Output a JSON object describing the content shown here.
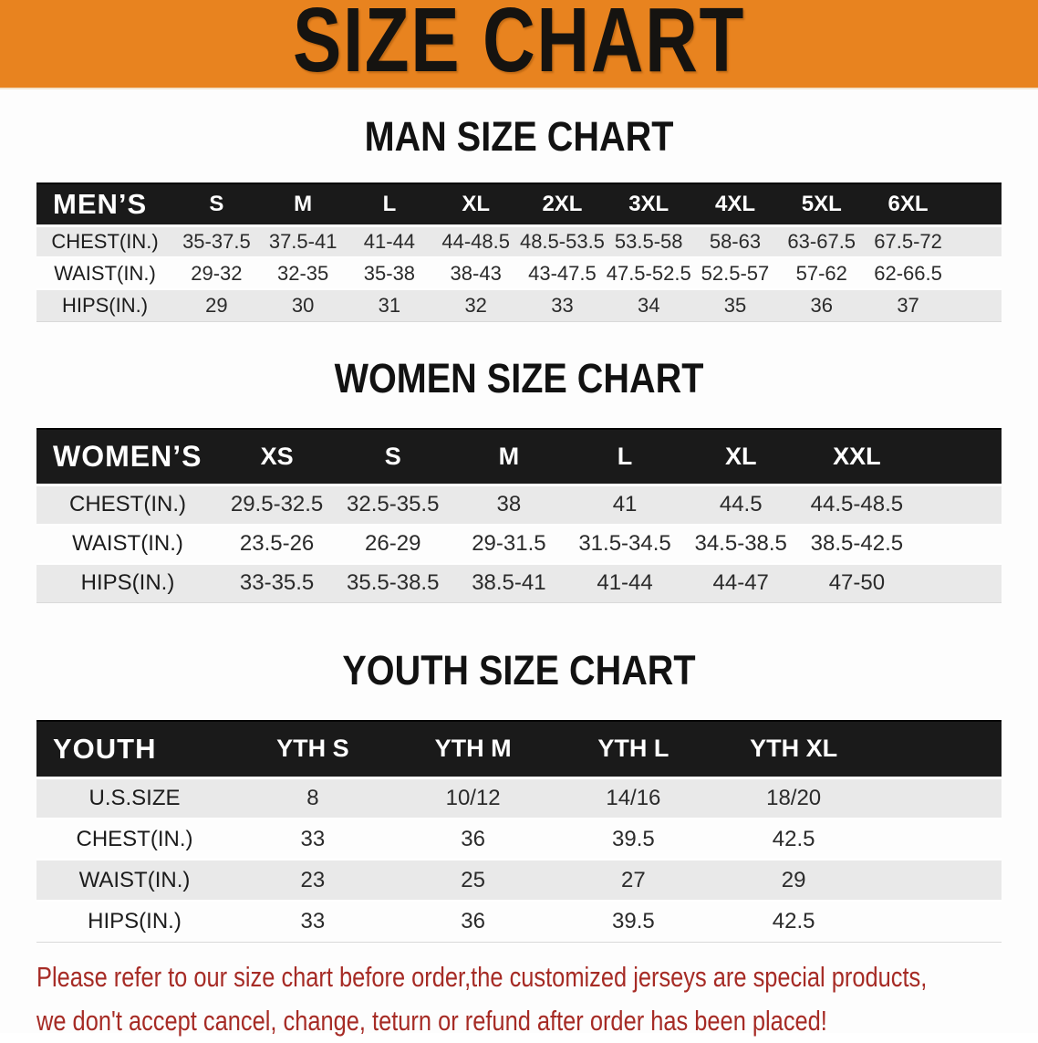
{
  "banner": {
    "title": "SIZE CHART",
    "bg_color": "#e8831f"
  },
  "sections": [
    {
      "id": "men",
      "title": "MAN SIZE CHART",
      "group_label": "MEN’S",
      "columns": [
        "S",
        "M",
        "L",
        "XL",
        "2XL",
        "3XL",
        "4XL",
        "5XL",
        "6XL"
      ],
      "rows": [
        {
          "label": "CHEST(IN.)",
          "values": [
            "35-37.5",
            "37.5-41",
            "41-44",
            "44-48.5",
            "48.5-53.5",
            "53.5-58",
            "58-63",
            "63-67.5",
            "67.5-72"
          ]
        },
        {
          "label": "WAIST(IN.)",
          "values": [
            "29-32",
            "32-35",
            "35-38",
            "38-43",
            "43-47.5",
            "47.5-52.5",
            "52.5-57",
            "57-62",
            "62-66.5"
          ]
        },
        {
          "label": "HIPS(IN.)",
          "values": [
            "29",
            "30",
            "31",
            "32",
            "33",
            "34",
            "35",
            "36",
            "37"
          ]
        }
      ]
    },
    {
      "id": "women",
      "title": "WOMEN SIZE CHART",
      "group_label": "WOMEN’S",
      "columns": [
        "XS",
        "S",
        "M",
        "L",
        "XL",
        "XXL"
      ],
      "rows": [
        {
          "label": "CHEST(IN.)",
          "values": [
            "29.5-32.5",
            "32.5-35.5",
            "38",
            "41",
            "44.5",
            "44.5-48.5"
          ]
        },
        {
          "label": "WAIST(IN.)",
          "values": [
            "23.5-26",
            "26-29",
            "29-31.5",
            "31.5-34.5",
            "34.5-38.5",
            "38.5-42.5"
          ]
        },
        {
          "label": "HIPS(IN.)",
          "values": [
            "33-35.5",
            "35.5-38.5",
            "38.5-41",
            "41-44",
            "44-47",
            "47-50"
          ]
        }
      ]
    },
    {
      "id": "youth",
      "title": "YOUTH SIZE CHART",
      "group_label": "YOUTH",
      "columns": [
        "YTH S",
        "YTH M",
        "YTH L",
        "YTH XL"
      ],
      "rows": [
        {
          "label": "U.S.SIZE",
          "values": [
            "8",
            "10/12",
            "14/16",
            "18/20"
          ]
        },
        {
          "label": "CHEST(IN.)",
          "values": [
            "33",
            "36",
            "39.5",
            "42.5"
          ]
        },
        {
          "label": "WAIST(IN.)",
          "values": [
            "23",
            "25",
            "27",
            "29"
          ]
        },
        {
          "label": "HIPS(IN.)",
          "values": [
            "33",
            "36",
            "39.5",
            "42.5"
          ]
        }
      ]
    }
  ],
  "disclaimer": {
    "color": "#a62b25",
    "lines": [
      "Please refer to our size chart before order,the customized jerseys are special products,",
      "we don't accept cancel, change, teturn or refund after order has been placed!"
    ]
  }
}
